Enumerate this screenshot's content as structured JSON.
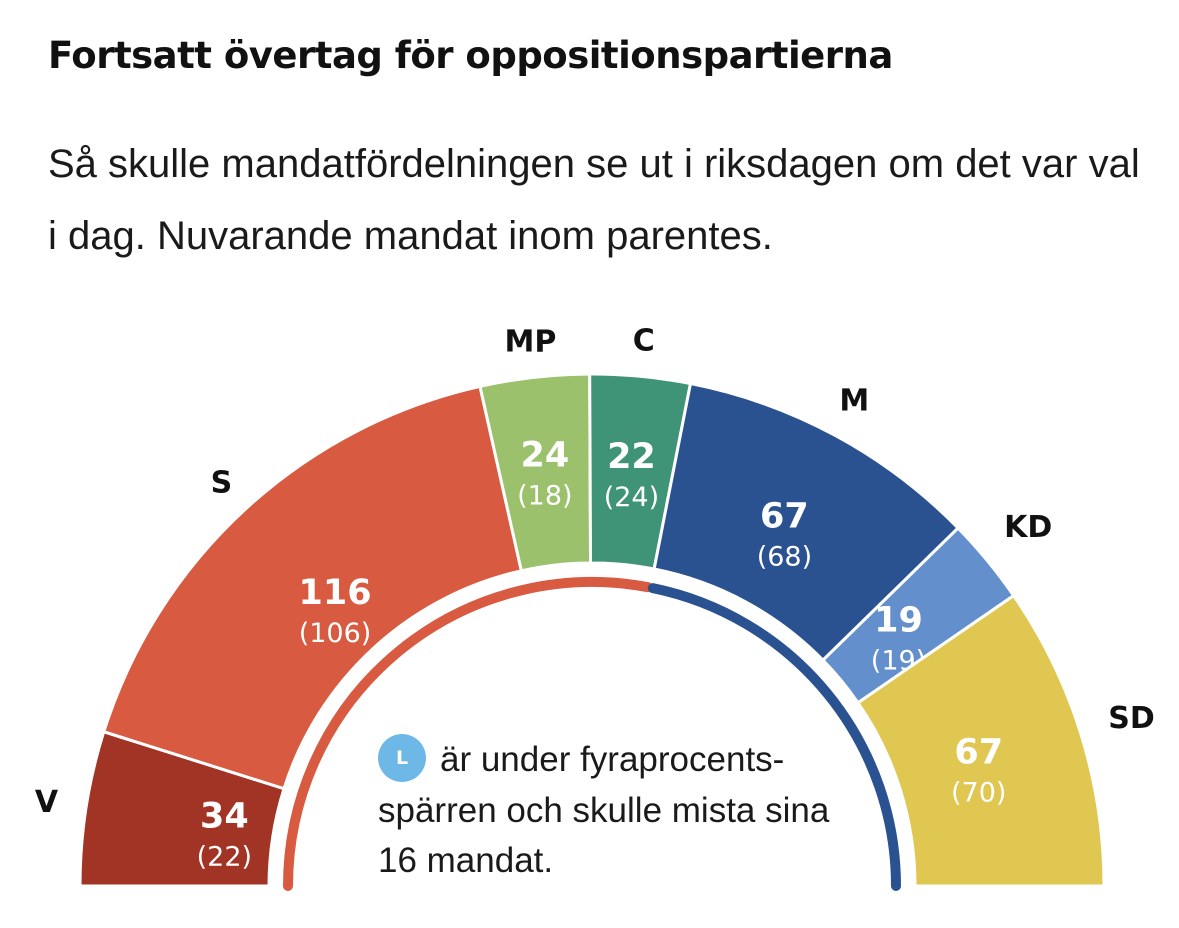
{
  "chart_data": {
    "type": "pie",
    "variant": "semicircle-parliament",
    "title": "Fortsatt övertag för oppositionspartierna",
    "subtitle": "Så skulle mandatfördelningen se ut i riksdagen om det var val i dag. Nuvarande mandat inom parentes.",
    "categories": [
      "V",
      "S",
      "MP",
      "C",
      "M",
      "KD",
      "SD"
    ],
    "values": [
      34,
      116,
      24,
      22,
      67,
      19,
      67
    ],
    "previous": [
      "(22)",
      "(106)",
      "(18)",
      "(24)",
      "(68)",
      "(19)",
      "(70)"
    ],
    "colors": [
      "#a13425",
      "#d85a40",
      "#9cc16d",
      "#3f9477",
      "#2b5290",
      "#6390cd",
      "#dfc752"
    ],
    "blocs": [
      {
        "from": 0,
        "to": 4,
        "color": "#d85a40"
      },
      {
        "from": 4,
        "to": 7,
        "color": "#2b5290"
      }
    ],
    "note": {
      "badge": "L",
      "text": "är under fyraprocents-spärren och skulle mista sina 16 mandat."
    }
  }
}
